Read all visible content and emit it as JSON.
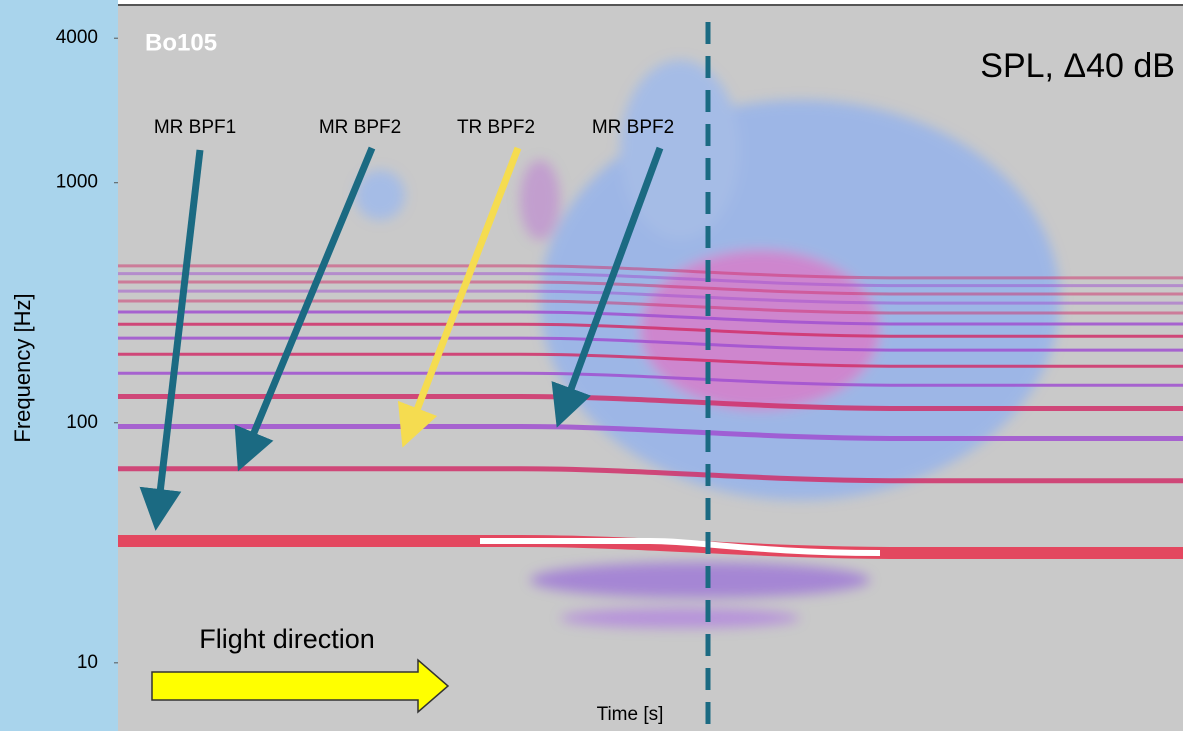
{
  "chart_data": {
    "type": "spectrogram",
    "title": "Bo105",
    "subtitle": "SPL, Δ40 dB",
    "y_label": "Frequency [Hz]",
    "x_label": "Time [s]",
    "y_scale": "log",
    "ylim": [
      5.2,
      5500
    ],
    "yticks": [
      10,
      100,
      1000,
      4000
    ],
    "annotations": [
      "MR BPF1",
      "MR BPF2",
      "TR BPF2",
      "MR BPF2",
      "Flight direction"
    ]
  }
}
